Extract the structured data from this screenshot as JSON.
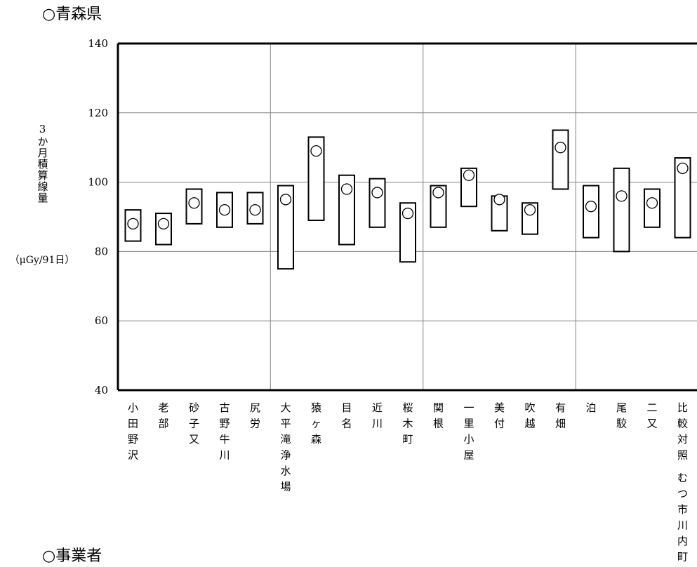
{
  "page": {
    "title": "○青森県",
    "next_section": "○事業者"
  },
  "chart_data": {
    "type": "range-bar",
    "ylabel": "3か月積算線量",
    "yunit": "（μGy/91日）",
    "ylim": [
      40,
      140
    ],
    "yticks": [
      40,
      60,
      80,
      100,
      120,
      140
    ],
    "grid": true,
    "categories": [
      "小田野沢",
      "老部",
      "砂子又",
      "古野牛川",
      "尻労",
      "大平滝浄水場",
      "猿ヶ森",
      "目名",
      "近川",
      "桜木町",
      "関根",
      "一里小屋",
      "美付",
      "吹越",
      "有畑",
      "泊",
      "尾駮",
      "二又",
      "比較対照 むつ市川内町"
    ],
    "ranges": [
      [
        83,
        92
      ],
      [
        82,
        91
      ],
      [
        88,
        98
      ],
      [
        87,
        97
      ],
      [
        88,
        97
      ],
      [
        75,
        99
      ],
      [
        89,
        113
      ],
      [
        82,
        102
      ],
      [
        87,
        101
      ],
      [
        77,
        94
      ],
      [
        87,
        99
      ],
      [
        93,
        104
      ],
      [
        86,
        96
      ],
      [
        85,
        94
      ],
      [
        98,
        115
      ],
      [
        84,
        99
      ],
      [
        80,
        104
      ],
      [
        87,
        98
      ],
      [
        84,
        107
      ]
    ],
    "current": [
      88,
      88,
      94,
      92,
      92,
      95,
      109,
      98,
      97,
      91,
      97,
      102,
      95,
      92,
      110,
      93,
      96,
      94,
      104
    ],
    "group_boundaries_after": [
      4,
      9,
      14
    ]
  }
}
